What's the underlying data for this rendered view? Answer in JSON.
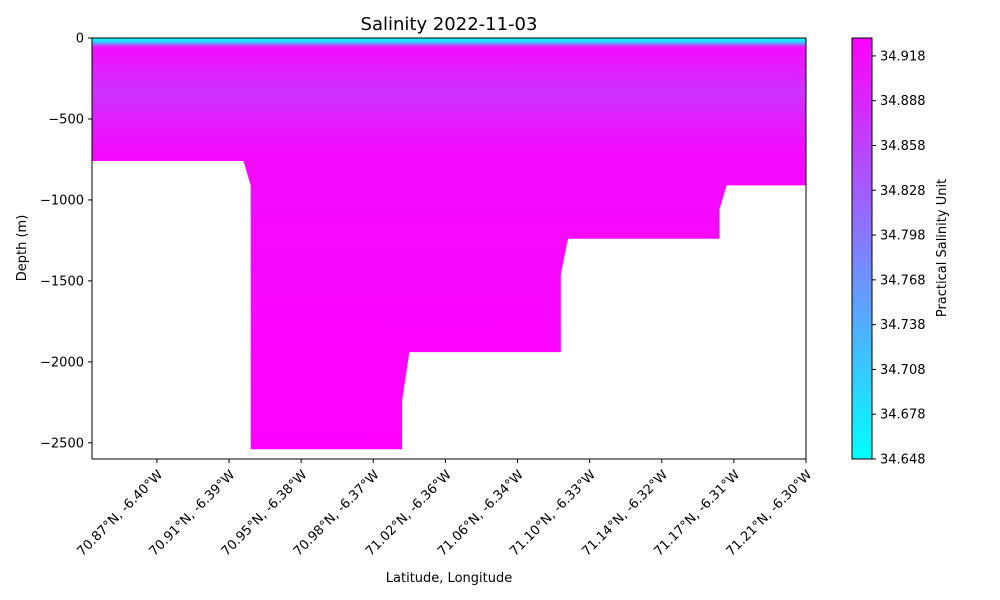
{
  "chart_data": {
    "type": "heatmap",
    "title": "Salinity 2022-11-03",
    "xlabel": "Latitude, Longitude",
    "ylabel": "Depth (m)",
    "x_tick_labels": [
      "70.87°N, -6.40°W",
      "70.91°N, -6.39°W",
      "70.95°N, -6.38°W",
      "70.98°N, -6.37°W",
      "71.02°N, -6.36°W",
      "71.06°N, -6.34°W",
      "71.10°N, -6.33°W",
      "71.14°N, -6.32°W",
      "71.17°N, -6.31°W",
      "71.21°N, -6.30°W"
    ],
    "x_range": [
      0,
      9.9
    ],
    "x_ticks": [
      0.9,
      1.9,
      2.9,
      3.9,
      4.9,
      5.9,
      6.9,
      7.9,
      8.9,
      9.9
    ],
    "ylim": [
      -2600,
      0
    ],
    "y_ticks": [
      0,
      -500,
      -1000,
      -1500,
      -2000,
      -2500
    ],
    "bottom_depth": [
      [
        0.0,
        -760
      ],
      [
        2.1,
        -760
      ],
      [
        2.2,
        -910
      ],
      [
        2.2,
        -2540
      ],
      [
        4.3,
        -2540
      ],
      [
        4.3,
        -2240
      ],
      [
        4.4,
        -1940
      ],
      [
        6.5,
        -1940
      ],
      [
        6.5,
        -1460
      ],
      [
        6.6,
        -1240
      ],
      [
        8.7,
        -1240
      ],
      [
        8.7,
        -1060
      ],
      [
        8.8,
        -910
      ],
      [
        9.9,
        -910
      ]
    ],
    "salinity_profile": [
      {
        "depth": 0,
        "value": 34.66
      },
      {
        "depth": -20,
        "value": 34.68
      },
      {
        "depth": -40,
        "value": 34.8
      },
      {
        "depth": -60,
        "value": 34.918
      },
      {
        "depth": -150,
        "value": 34.905
      },
      {
        "depth": -350,
        "value": 34.875
      },
      {
        "depth": -500,
        "value": 34.895
      },
      {
        "depth": -700,
        "value": 34.918
      },
      {
        "depth": -2600,
        "value": 34.93
      }
    ],
    "colorbar": {
      "label": "Practical Salinity Unit",
      "min": 34.648,
      "max": 34.93,
      "ticks": [
        34.648,
        34.678,
        34.708,
        34.738,
        34.768,
        34.798,
        34.828,
        34.858,
        34.888,
        34.918
      ],
      "color_low": "#00ffff",
      "color_high": "#ff00ff",
      "colormap": "cool"
    }
  }
}
